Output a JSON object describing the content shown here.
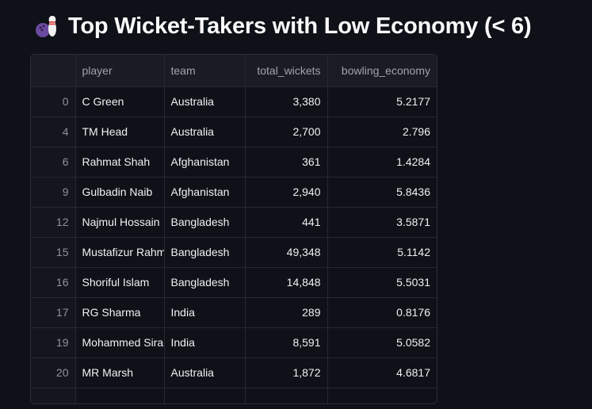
{
  "header": {
    "icon": "bowling-icon",
    "title": "Top Wicket-Takers with Low Economy (< 6)"
  },
  "table": {
    "columns": [
      "",
      "player",
      "team",
      "total_wickets",
      "bowling_economy"
    ],
    "rows": [
      {
        "index": "0",
        "player": "C Green",
        "team": "Australia",
        "total_wickets": "3,380",
        "bowling_economy": "5.2177"
      },
      {
        "index": "4",
        "player": "TM Head",
        "team": "Australia",
        "total_wickets": "2,700",
        "bowling_economy": "2.796"
      },
      {
        "index": "6",
        "player": "Rahmat Shah",
        "team": "Afghanistan",
        "total_wickets": "361",
        "bowling_economy": "1.4284"
      },
      {
        "index": "9",
        "player": "Gulbadin Naib",
        "team": "Afghanistan",
        "total_wickets": "2,940",
        "bowling_economy": "5.8436"
      },
      {
        "index": "12",
        "player": "Najmul Hossain",
        "team": "Bangladesh",
        "total_wickets": "441",
        "bowling_economy": "3.5871"
      },
      {
        "index": "15",
        "player": "Mustafizur Rahm",
        "team": "Bangladesh",
        "total_wickets": "49,348",
        "bowling_economy": "5.1142"
      },
      {
        "index": "16",
        "player": "Shoriful Islam",
        "team": "Bangladesh",
        "total_wickets": "14,848",
        "bowling_economy": "5.5031"
      },
      {
        "index": "17",
        "player": "RG Sharma",
        "team": "India",
        "total_wickets": "289",
        "bowling_economy": "0.8176"
      },
      {
        "index": "19",
        "player": "Mohammed Sira",
        "team": "India",
        "total_wickets": "8,591",
        "bowling_economy": "5.0582"
      },
      {
        "index": "20",
        "player": "MR Marsh",
        "team": "Australia",
        "total_wickets": "1,872",
        "bowling_economy": "4.6817"
      }
    ]
  }
}
